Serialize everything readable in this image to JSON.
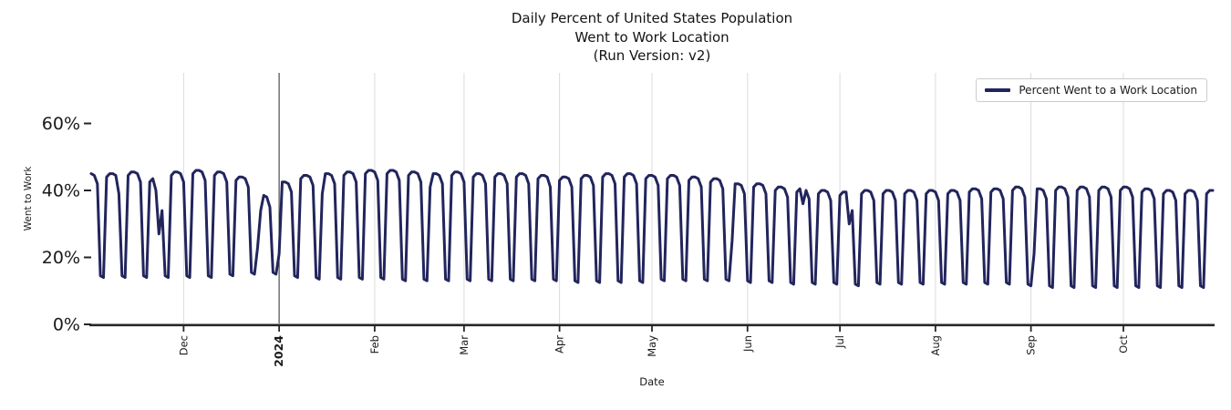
{
  "title": {
    "line1": "Daily Percent of United States Population",
    "line2": "Went to Work Location",
    "line3": "(Run Version: v2)"
  },
  "colors": {
    "line": "#22255C",
    "grid": "#DBDBDB",
    "year_line": "#3C3C3C",
    "axis": "#262626",
    "text": "#1A1A1A",
    "legend_border": "#CCCCCC",
    "background": "#FFFFFF"
  },
  "chart_data": {
    "type": "line",
    "title": "Daily Percent of United States Population\nWent to Work Location\n(Run Version: v2)",
    "xlabel": "Date",
    "ylabel": "Went to Work",
    "ylim": [
      0,
      75
    ],
    "grid": "vertical month gridlines only, light gray; dark vertical line at year boundary 2024",
    "legend": {
      "position": "upper right",
      "entries": [
        "Percent Went to a Work Location"
      ]
    },
    "x_range": [
      "2023-11-01",
      "2024-10-30"
    ],
    "yticks": [
      {
        "value": 0,
        "label": "0%"
      },
      {
        "value": 20,
        "label": "20%"
      },
      {
        "value": 40,
        "label": "40%"
      },
      {
        "value": 60,
        "label": "60%"
      }
    ],
    "xticks": [
      {
        "date": "2023-12-01",
        "label": "Dec",
        "bold": false
      },
      {
        "date": "2024-01-01",
        "label": "2024",
        "bold": true
      },
      {
        "date": "2024-02-01",
        "label": "Feb",
        "bold": false
      },
      {
        "date": "2024-03-01",
        "label": "Mar",
        "bold": false
      },
      {
        "date": "2024-04-01",
        "label": "Apr",
        "bold": false
      },
      {
        "date": "2024-05-01",
        "label": "May",
        "bold": false
      },
      {
        "date": "2024-06-01",
        "label": "Jun",
        "bold": false
      },
      {
        "date": "2024-07-01",
        "label": "Jul",
        "bold": false
      },
      {
        "date": "2024-08-01",
        "label": "Aug",
        "bold": false
      },
      {
        "date": "2024-09-01",
        "label": "Sep",
        "bold": false
      },
      {
        "date": "2024-10-01",
        "label": "Oct",
        "bold": false
      }
    ],
    "series": [
      {
        "name": "Percent Went to a Work Location",
        "color": "#22255C",
        "frequency": "daily",
        "pattern": "weekday plateau near hi, deep weekend dip near lo; holidays lower (exceptions)",
        "weekday_offsets_mon_to_fri": [
          -1,
          0,
          0,
          -0.5,
          -3
        ],
        "weekend_offsets_sat_sun": [
          0.5,
          0
        ],
        "weeks": [
          {
            "start": "2023-10-30",
            "hi": 45.0,
            "lo": 14.0
          },
          {
            "start": "2023-11-06",
            "hi": 45.0,
            "lo": 14.0
          },
          {
            "start": "2023-11-13",
            "hi": 45.5,
            "lo": 14.0
          },
          {
            "start": "2023-11-20",
            "hi": 43.5,
            "lo": 14.0
          },
          {
            "start": "2023-11-27",
            "hi": 45.5,
            "lo": 14.0
          },
          {
            "start": "2023-12-04",
            "hi": 46.0,
            "lo": 14.0
          },
          {
            "start": "2023-12-11",
            "hi": 45.5,
            "lo": 14.5
          },
          {
            "start": "2023-12-18",
            "hi": 44.0,
            "lo": 15.0
          },
          {
            "start": "2023-12-25",
            "hi": 38.5,
            "lo": 15.0
          },
          {
            "start": "2024-01-01",
            "hi": 42.5,
            "lo": 14.0
          },
          {
            "start": "2024-01-08",
            "hi": 44.5,
            "lo": 13.5
          },
          {
            "start": "2024-01-15",
            "hi": 45.0,
            "lo": 13.5
          },
          {
            "start": "2024-01-22",
            "hi": 45.5,
            "lo": 13.5
          },
          {
            "start": "2024-01-29",
            "hi": 46.0,
            "lo": 13.5
          },
          {
            "start": "2024-02-05",
            "hi": 46.0,
            "lo": 13.0
          },
          {
            "start": "2024-02-12",
            "hi": 45.5,
            "lo": 13.0
          },
          {
            "start": "2024-02-19",
            "hi": 45.0,
            "lo": 13.0
          },
          {
            "start": "2024-02-26",
            "hi": 45.5,
            "lo": 13.0
          },
          {
            "start": "2024-03-04",
            "hi": 45.0,
            "lo": 13.0
          },
          {
            "start": "2024-03-11",
            "hi": 45.0,
            "lo": 13.0
          },
          {
            "start": "2024-03-18",
            "hi": 45.0,
            "lo": 13.0
          },
          {
            "start": "2024-03-25",
            "hi": 44.5,
            "lo": 13.0
          },
          {
            "start": "2024-04-01",
            "hi": 44.0,
            "lo": 12.5
          },
          {
            "start": "2024-04-08",
            "hi": 44.5,
            "lo": 12.5
          },
          {
            "start": "2024-04-15",
            "hi": 45.0,
            "lo": 12.5
          },
          {
            "start": "2024-04-22",
            "hi": 45.0,
            "lo": 12.5
          },
          {
            "start": "2024-04-29",
            "hi": 44.5,
            "lo": 13.0
          },
          {
            "start": "2024-05-06",
            "hi": 44.5,
            "lo": 13.0
          },
          {
            "start": "2024-05-13",
            "hi": 44.0,
            "lo": 13.0
          },
          {
            "start": "2024-05-20",
            "hi": 43.5,
            "lo": 13.0
          },
          {
            "start": "2024-05-27",
            "hi": 42.0,
            "lo": 12.5
          },
          {
            "start": "2024-06-03",
            "hi": 42.0,
            "lo": 12.5
          },
          {
            "start": "2024-06-10",
            "hi": 41.0,
            "lo": 12.0
          },
          {
            "start": "2024-06-17",
            "hi": 40.5,
            "lo": 12.0
          },
          {
            "start": "2024-06-24",
            "hi": 40.0,
            "lo": 12.0
          },
          {
            "start": "2024-07-01",
            "hi": 39.5,
            "lo": 11.5
          },
          {
            "start": "2024-07-08",
            "hi": 40.0,
            "lo": 12.0
          },
          {
            "start": "2024-07-15",
            "hi": 40.0,
            "lo": 12.0
          },
          {
            "start": "2024-07-22",
            "hi": 40.0,
            "lo": 12.0
          },
          {
            "start": "2024-07-29",
            "hi": 40.0,
            "lo": 12.0
          },
          {
            "start": "2024-08-05",
            "hi": 40.0,
            "lo": 12.0
          },
          {
            "start": "2024-08-12",
            "hi": 40.5,
            "lo": 12.0
          },
          {
            "start": "2024-08-19",
            "hi": 40.5,
            "lo": 12.0
          },
          {
            "start": "2024-08-26",
            "hi": 41.0,
            "lo": 11.5
          },
          {
            "start": "2024-09-02",
            "hi": 40.5,
            "lo": 11.0
          },
          {
            "start": "2024-09-09",
            "hi": 41.0,
            "lo": 11.0
          },
          {
            "start": "2024-09-16",
            "hi": 41.0,
            "lo": 11.0
          },
          {
            "start": "2024-09-23",
            "hi": 41.0,
            "lo": 11.0
          },
          {
            "start": "2024-09-30",
            "hi": 41.0,
            "lo": 11.0
          },
          {
            "start": "2024-10-07",
            "hi": 40.5,
            "lo": 11.0
          },
          {
            "start": "2024-10-14",
            "hi": 40.0,
            "lo": 11.0
          },
          {
            "start": "2024-10-21",
            "hi": 40.0,
            "lo": 11.0
          },
          {
            "start": "2024-10-28",
            "hi": 40.0,
            "lo": 11.0
          }
        ],
        "holiday_exceptions": {
          "2023-11-10": 39,
          "2023-11-22": 40,
          "2023-11-23": 27,
          "2023-11-24": 34,
          "2023-12-22": 41,
          "2023-12-25": 23,
          "2023-12-26": 34,
          "2023-12-29": 35,
          "2024-01-01": 21,
          "2024-01-15": 39,
          "2024-02-19": 41,
          "2024-03-29": 41,
          "2024-05-27": 25,
          "2024-06-19": 36,
          "2024-07-04": 30,
          "2024-07-05": 34,
          "2024-09-02": 21
        }
      }
    ]
  }
}
